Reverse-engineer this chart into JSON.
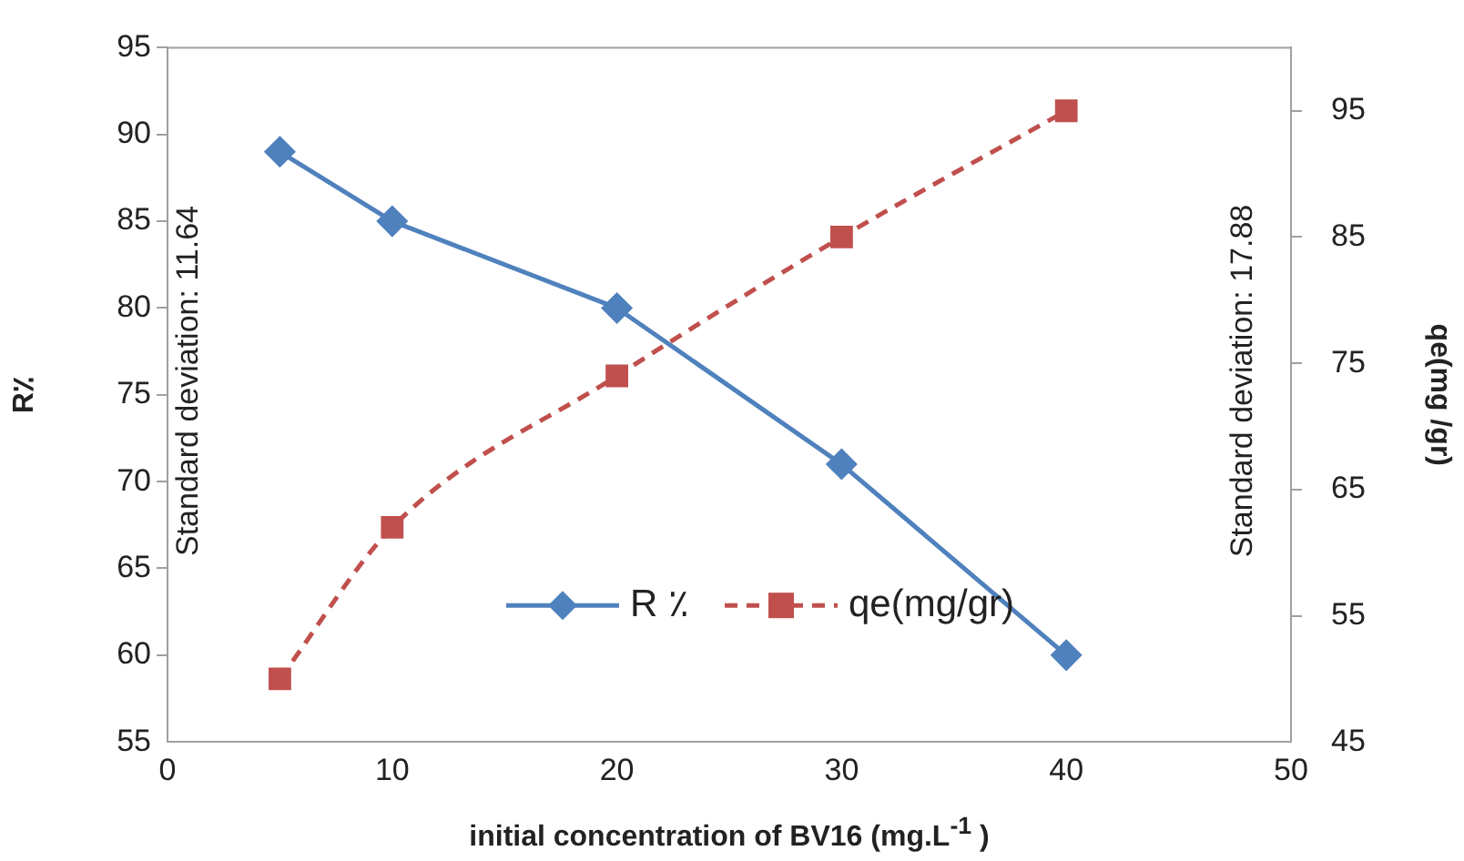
{
  "chart_data": {
    "type": "line",
    "xlabel": "initial concentration of BV16 (mg.L$^{-1}$ )",
    "ylabel": "R٪",
    "y2label": "qe(mg /gr)",
    "x": [
      5,
      10,
      20,
      30,
      40
    ],
    "xlim": [
      0,
      50
    ],
    "xticks": [
      0,
      10,
      20,
      30,
      40,
      50
    ],
    "ylim": [
      55,
      95
    ],
    "yticks": [
      55,
      60,
      65,
      70,
      75,
      80,
      85,
      90,
      95
    ],
    "y2lim": [
      45,
      100
    ],
    "y2ticks": [
      45,
      55,
      65,
      75,
      85,
      95
    ],
    "series": [
      {
        "name": "R ٪",
        "color": "#4f81bd",
        "values": [
          89,
          85,
          80,
          71,
          60
        ],
        "marker": "diamond",
        "line_style": "solid"
      },
      {
        "name": "qe(mg/gr)",
        "color": "#c0504d",
        "values": [
          50,
          62,
          74,
          85,
          95
        ],
        "marker": "square",
        "line_style": "dashed",
        "axis": "y2"
      }
    ],
    "annotations": [
      "Standard deviation: 11.64",
      "Standard deviation: 17.88"
    ],
    "grid": false,
    "legend": "bottom"
  }
}
